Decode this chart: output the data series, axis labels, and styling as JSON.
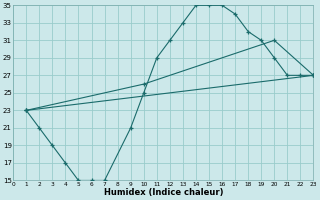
{
  "xlabel": "Humidex (Indice chaleur)",
  "bg_color": "#cce8ea",
  "grid_color": "#99cccc",
  "line_color": "#1a6b6b",
  "xlim": [
    0,
    23
  ],
  "ylim": [
    15,
    35
  ],
  "xticks": [
    0,
    1,
    2,
    3,
    4,
    5,
    6,
    7,
    8,
    9,
    10,
    11,
    12,
    13,
    14,
    15,
    16,
    17,
    18,
    19,
    20,
    21,
    22,
    23
  ],
  "yticks": [
    15,
    17,
    19,
    21,
    23,
    25,
    27,
    29,
    31,
    33,
    35
  ],
  "curve1_x": [
    1,
    2,
    3,
    4,
    5,
    6,
    7,
    9,
    10,
    11,
    12,
    13,
    14,
    15,
    16,
    17,
    18,
    19,
    20,
    21,
    22,
    23
  ],
  "curve1_y": [
    23,
    21,
    19,
    17,
    15,
    15,
    15,
    21,
    25,
    29,
    31,
    33,
    35,
    35,
    35,
    34,
    32,
    31,
    29,
    27,
    27,
    27
  ],
  "curve2_x": [
    1,
    10,
    20,
    23
  ],
  "curve2_y": [
    23,
    26,
    31,
    27
  ],
  "curve3_x": [
    1,
    23
  ],
  "curve3_y": [
    23,
    27
  ]
}
